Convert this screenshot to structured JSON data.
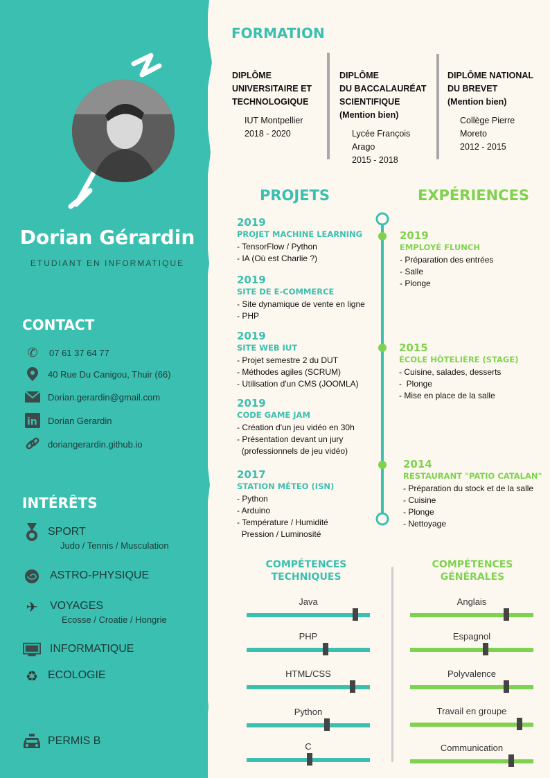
{
  "profile": {
    "name": "Dorian Gérardin",
    "subtitle": "ETUDIANT EN INFORMATIQUE"
  },
  "contact": {
    "title": "CONTACT",
    "items": [
      {
        "icon": "phone-icon",
        "text": "07 61 37 64 77"
      },
      {
        "icon": "location-pin-icon",
        "text": "40 Rue Du Canigou, Thuir (66)"
      },
      {
        "icon": "mail-icon",
        "text": "Dorian.gerardin@gmail.com"
      },
      {
        "icon": "linkedin-icon",
        "text": "Dorian Gerardin"
      },
      {
        "icon": "link-icon",
        "text": "doriangerardin.github.io"
      }
    ]
  },
  "interests": {
    "title": "INTÉRÊTS",
    "items": [
      {
        "icon": "medal-icon",
        "label": "SPORT",
        "sub": "Judo / Tennis / Musculation"
      },
      {
        "icon": "galaxy-icon",
        "label": "ASTRO-PHYSIQUE",
        "sub": ""
      },
      {
        "icon": "airplane-icon",
        "label": "VOYAGES",
        "sub": "Ecosse / Croatie / Hongrie"
      },
      {
        "icon": "computer-icon",
        "label": "INFORMATIQUE",
        "sub": ""
      },
      {
        "icon": "recycle-icon",
        "label": "ECOLOGIE",
        "sub": ""
      },
      {
        "icon": "car-icon",
        "label": "PERMIS B",
        "sub": ""
      }
    ]
  },
  "formation": {
    "title": "FORMATION",
    "items": [
      {
        "title": "DIPLÔME\nUNIVERSITAIRE ET\nTECHNOLOGIQUE",
        "mention": "",
        "details": "IUT Montpellier\n2018 - 2020"
      },
      {
        "title": "DIPLÔME\nDU BACCALAURÉAT\nSCIENTIFIQUE",
        "mention": "(Mention bien)",
        "details": "Lycée François\nArago\n2015 - 2018"
      },
      {
        "title": "DIPLÔME NATIONAL\nDU BREVET",
        "mention": "(Mention bien)",
        "details": "Collège Pierre\nMoreto\n2012 - 2015"
      }
    ]
  },
  "projets": {
    "title": "PROJETS",
    "items": [
      {
        "year": "2019",
        "title": "PROJET MACHINE LEARNING",
        "lines": [
          "- TensorFlow / Python",
          "- IA (Où est Charlie ?)"
        ]
      },
      {
        "year": "2019",
        "title": "SITE DE E-COMMERCE",
        "lines": [
          "- Site dynamique de vente en ligne",
          "- PHP"
        ]
      },
      {
        "year": "2019",
        "title": "SITE WEB IUT",
        "lines": [
          "- Projet semestre 2 du DUT",
          "- Méthodes agiles (SCRUM)",
          "- Utilisation d'un CMS (JOOMLA)"
        ]
      },
      {
        "year": "2019",
        "title": "CODE GAME JAM",
        "lines": [
          "- Création d'un jeu vidéo en 30h",
          "- Présentation devant un jury",
          "  (professionnels de jeu vidéo)"
        ]
      },
      {
        "year": "2017",
        "title": "STATION MÉTEO (ISN)",
        "lines": [
          "- Python",
          "- Arduino",
          "- Température / Humidité",
          "  Pression / Luminosité"
        ]
      }
    ]
  },
  "experiences": {
    "title": "EXPÉRIENCES",
    "items": [
      {
        "year": "2019",
        "title": "EMPLOYÉ FLUNCH",
        "lines": [
          "- Préparation des entrées",
          "- Salle",
          "- Plonge"
        ]
      },
      {
        "year": "2015",
        "title": "ÉCOLE HÔTELIÈRE (STAGE)",
        "lines": [
          "- Cuisine, salades, desserts",
          "-  Plonge",
          "- Mise en place de la salle"
        ]
      },
      {
        "year": "2014",
        "title": "RESTAURANT \"PATIO CATALAN\"",
        "lines": [
          "- Préparation du stock et de la salle",
          "- Cuisine",
          "- Plonge",
          "- Nettoyage"
        ]
      }
    ]
  },
  "skills_tech": {
    "title": "COMPÉTENCES\nTECHNIQUES",
    "color": "#3bbfb0",
    "items": [
      {
        "name": "Java",
        "level": 0.88
      },
      {
        "name": "PHP",
        "level": 0.64
      },
      {
        "name": "HTML/CSS",
        "level": 0.86
      },
      {
        "name": "Python",
        "level": 0.65
      },
      {
        "name": "C",
        "level": 0.51
      }
    ]
  },
  "skills_gen": {
    "title": "COMPÉTENCES\nGÉNÉRALES",
    "color": "#7fd24f",
    "items": [
      {
        "name": "Anglais",
        "level": 0.78
      },
      {
        "name": "Espagnol",
        "level": 0.61
      },
      {
        "name": "Polyvalence",
        "level": 0.78
      },
      {
        "name": "Travail en groupe",
        "level": 0.89
      },
      {
        "name": "Communication",
        "level": 0.82
      }
    ]
  }
}
